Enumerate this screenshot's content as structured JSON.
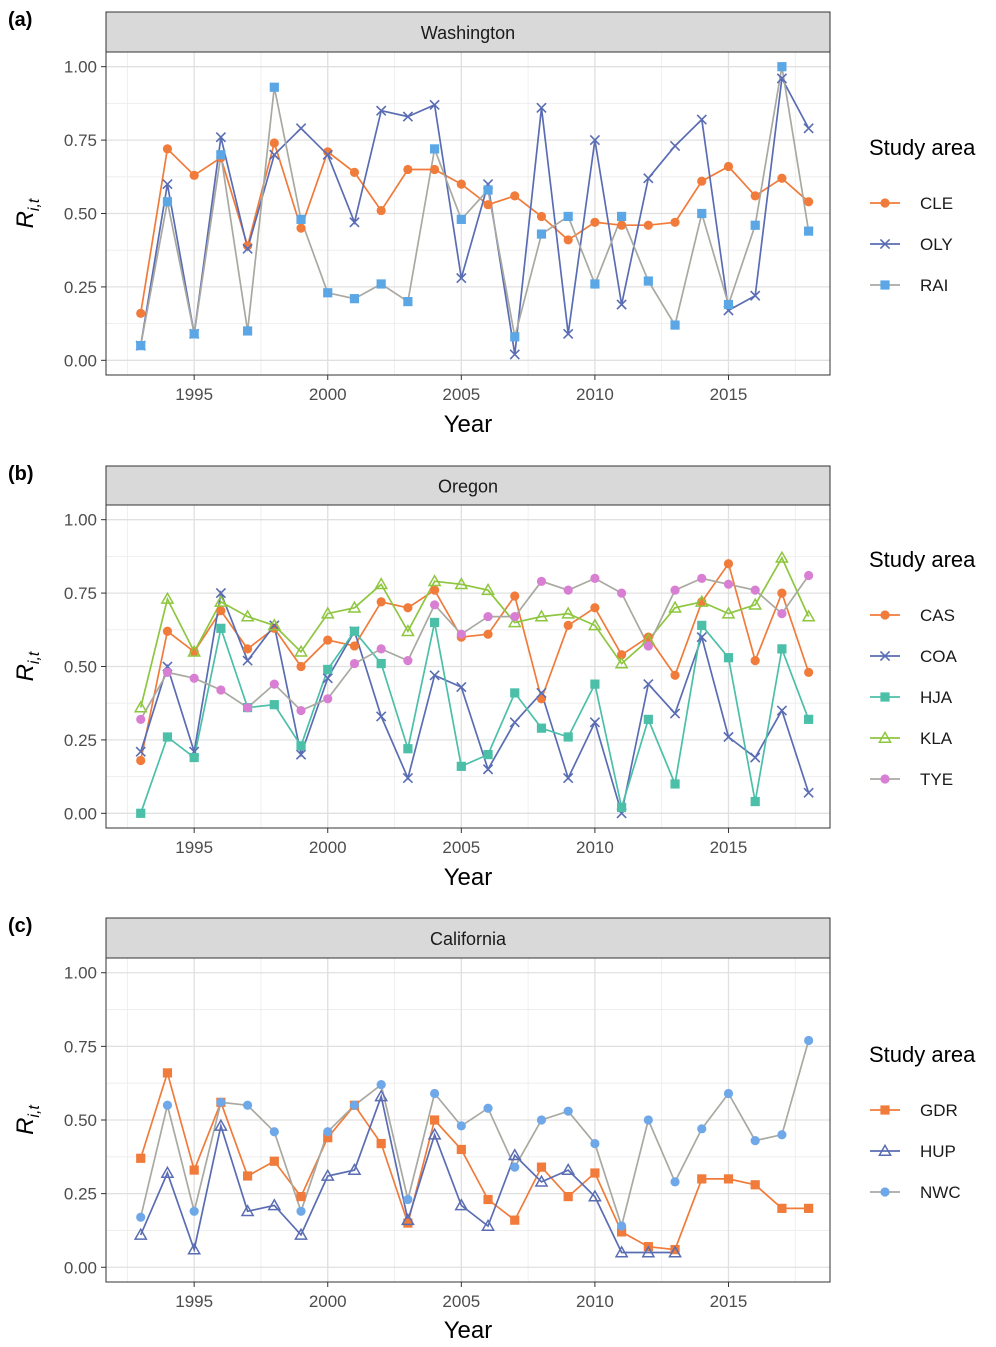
{
  "chart_data": [
    {
      "type": "line",
      "panel_label": "(a)",
      "title": "Washington",
      "xlabel": "Year",
      "ylabel": "R",
      "ylabel_subscript": "i,t",
      "xlim": [
        1991.7,
        2018.8
      ],
      "ylim": [
        -0.05,
        1.05
      ],
      "x_ticks": [
        "1995",
        "2000",
        "2005",
        "2010",
        "2015"
      ],
      "y_ticks": [
        "0.00",
        "0.25",
        "0.50",
        "0.75",
        "1.00"
      ],
      "legend_title": "Study area",
      "grid": true,
      "legend_position": "right",
      "x": [
        1993,
        1994,
        1995,
        1996,
        1997,
        1998,
        1999,
        2000,
        2001,
        2002,
        2003,
        2004,
        2005,
        2006,
        2007,
        2008,
        2009,
        2010,
        2011,
        2012,
        2013,
        2014,
        2015,
        2016,
        2017,
        2018
      ],
      "series": [
        {
          "name": "CLE",
          "color": "#f07b3a",
          "marker": "circle",
          "values": [
            0.16,
            0.72,
            0.63,
            0.69,
            0.39,
            0.74,
            0.45,
            0.71,
            0.64,
            0.51,
            0.65,
            0.65,
            0.6,
            0.53,
            0.56,
            0.49,
            0.41,
            0.47,
            0.46,
            0.46,
            0.47,
            0.61,
            0.66,
            0.56,
            0.62,
            0.54
          ]
        },
        {
          "name": "OLY",
          "color": "#5a6db3",
          "marker": "x",
          "values": [
            0.05,
            0.6,
            0.09,
            0.76,
            0.38,
            0.7,
            0.79,
            0.7,
            0.47,
            0.85,
            0.83,
            0.87,
            0.28,
            0.6,
            0.02,
            0.86,
            0.09,
            0.75,
            0.19,
            0.62,
            0.73,
            0.82,
            0.17,
            0.22,
            0.96,
            0.79
          ]
        },
        {
          "name": "RAI",
          "color": "#a9a9a2",
          "marker": "square",
          "marker_fill": "#5ba7e6",
          "values": [
            0.05,
            0.54,
            0.09,
            0.7,
            0.1,
            0.93,
            0.48,
            0.23,
            0.21,
            0.26,
            0.2,
            0.72,
            0.48,
            0.58,
            0.08,
            0.43,
            0.49,
            0.26,
            0.49,
            0.27,
            0.12,
            0.5,
            0.19,
            0.46,
            1.0,
            0.44
          ]
        }
      ]
    },
    {
      "type": "line",
      "panel_label": "(b)",
      "title": "Oregon",
      "xlabel": "Year",
      "ylabel": "R",
      "ylabel_subscript": "i,t",
      "xlim": [
        1991.7,
        2018.8
      ],
      "ylim": [
        -0.05,
        1.05
      ],
      "x_ticks": [
        "1995",
        "2000",
        "2005",
        "2010",
        "2015"
      ],
      "y_ticks": [
        "0.00",
        "0.25",
        "0.50",
        "0.75",
        "1.00"
      ],
      "legend_title": "Study area",
      "grid": true,
      "legend_position": "right",
      "x": [
        1993,
        1994,
        1995,
        1996,
        1997,
        1998,
        1999,
        2000,
        2001,
        2002,
        2003,
        2004,
        2005,
        2006,
        2007,
        2008,
        2009,
        2010,
        2011,
        2012,
        2013,
        2014,
        2015,
        2016,
        2017,
        2018
      ],
      "series": [
        {
          "name": "CAS",
          "color": "#f07b3a",
          "marker": "circle",
          "values": [
            0.18,
            0.62,
            0.55,
            0.69,
            0.56,
            0.63,
            0.5,
            0.59,
            0.57,
            0.72,
            0.7,
            0.76,
            0.6,
            0.61,
            0.74,
            0.39,
            0.64,
            0.7,
            0.54,
            0.6,
            0.47,
            0.72,
            0.85,
            0.52,
            0.75,
            0.48
          ]
        },
        {
          "name": "COA",
          "color": "#5a6db3",
          "marker": "x",
          "values": [
            0.21,
            0.5,
            0.21,
            0.75,
            0.52,
            0.64,
            0.2,
            0.46,
            0.62,
            0.33,
            0.12,
            0.47,
            0.43,
            0.15,
            0.31,
            0.41,
            0.12,
            0.31,
            0.0,
            0.44,
            0.34,
            0.6,
            0.26,
            0.19,
            0.35,
            0.07
          ]
        },
        {
          "name": "HJA",
          "color": "#4bbfa8",
          "marker": "square",
          "values": [
            0.0,
            0.26,
            0.19,
            0.63,
            0.36,
            0.37,
            0.23,
            0.49,
            0.62,
            0.51,
            0.22,
            0.65,
            0.16,
            0.2,
            0.41,
            0.29,
            0.26,
            0.44,
            0.02,
            0.32,
            0.1,
            0.64,
            0.53,
            0.04,
            0.56,
            0.32
          ]
        },
        {
          "name": "KLA",
          "color": "#8ec63f",
          "marker": "triangle-open",
          "values": [
            0.36,
            0.73,
            0.55,
            0.72,
            0.67,
            0.64,
            0.55,
            0.68,
            0.7,
            0.78,
            0.62,
            0.79,
            0.78,
            0.76,
            0.65,
            0.67,
            0.68,
            0.64,
            0.51,
            0.59,
            0.7,
            0.72,
            0.68,
            0.71,
            0.87,
            0.67
          ]
        },
        {
          "name": "TYE",
          "color": "#a9a9a2",
          "marker": "circle",
          "marker_fill": "#d97fd3",
          "values": [
            0.32,
            0.48,
            0.46,
            0.42,
            0.36,
            0.44,
            0.35,
            0.39,
            0.51,
            0.56,
            0.52,
            0.71,
            0.61,
            0.67,
            0.67,
            0.79,
            0.76,
            0.8,
            0.75,
            0.57,
            0.76,
            0.8,
            0.78,
            0.76,
            0.68,
            0.81
          ]
        }
      ]
    },
    {
      "type": "line",
      "panel_label": "(c)",
      "title": "California",
      "xlabel": "Year",
      "ylabel": "R",
      "ylabel_subscript": "i,t",
      "xlim": [
        1991.7,
        2018.8
      ],
      "ylim": [
        -0.05,
        1.05
      ],
      "x_ticks": [
        "1995",
        "2000",
        "2005",
        "2010",
        "2015"
      ],
      "y_ticks": [
        "0.00",
        "0.25",
        "0.50",
        "0.75",
        "1.00"
      ],
      "legend_title": "Study area",
      "grid": true,
      "legend_position": "right",
      "x": [
        1993,
        1994,
        1995,
        1996,
        1997,
        1998,
        1999,
        2000,
        2001,
        2002,
        2003,
        2004,
        2005,
        2006,
        2007,
        2008,
        2009,
        2010,
        2011,
        2012,
        2013,
        2014,
        2015,
        2016,
        2017,
        2018
      ],
      "series": [
        {
          "name": "GDR",
          "color": "#f07b3a",
          "marker": "square",
          "values": [
            0.37,
            0.66,
            0.33,
            0.56,
            0.31,
            0.36,
            0.24,
            0.44,
            0.55,
            0.42,
            0.15,
            0.5,
            0.4,
            0.23,
            0.16,
            0.34,
            0.24,
            0.32,
            0.12,
            0.07,
            0.06,
            0.3,
            0.3,
            0.28,
            0.2,
            0.2
          ]
        },
        {
          "name": "HUP",
          "color": "#5a6db3",
          "marker": "triangle-open",
          "values": [
            0.11,
            0.32,
            0.06,
            0.48,
            0.19,
            0.21,
            0.11,
            0.31,
            0.33,
            0.58,
            0.16,
            0.45,
            0.21,
            0.14,
            0.38,
            0.29,
            0.33,
            0.24,
            0.05,
            0.05,
            0.05,
            null,
            null,
            null,
            null,
            null
          ]
        },
        {
          "name": "NWC",
          "color": "#a9a9a2",
          "marker": "circle",
          "marker_fill": "#6fa8e8",
          "values": [
            0.17,
            0.55,
            0.19,
            0.56,
            0.55,
            0.46,
            0.19,
            0.46,
            0.55,
            0.62,
            0.23,
            0.59,
            0.48,
            0.54,
            0.34,
            0.5,
            0.53,
            0.42,
            0.14,
            0.5,
            0.29,
            0.47,
            0.59,
            0.43,
            0.45,
            0.77
          ]
        }
      ]
    }
  ]
}
